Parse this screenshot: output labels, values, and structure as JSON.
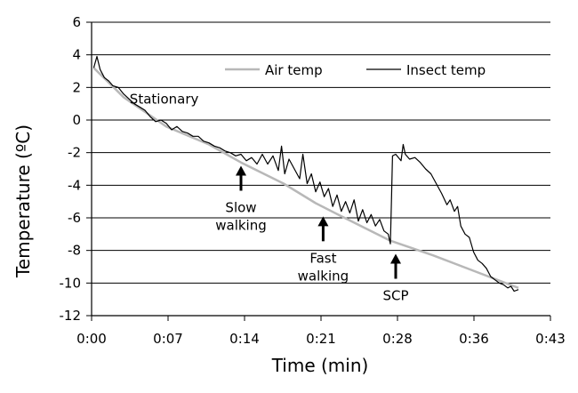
{
  "chart_data": {
    "type": "line",
    "xlabel": "Time (min)",
    "ylabel": "Temperature (ºC)",
    "xlim": [
      0,
      43
    ],
    "ylim": [
      -12,
      6
    ],
    "x_ticks": [
      "0:00",
      "0:07",
      "0:14",
      "0:21",
      "0:28",
      "0:36",
      "0:43"
    ],
    "y_ticks": [
      6,
      4,
      2,
      0,
      -2,
      -4,
      -6,
      -8,
      -10,
      -12
    ],
    "grid": "horizontal",
    "legend_position": "top-right",
    "colors": {
      "air": "#b8b8b8",
      "insect": "#000000",
      "grid": "#000000"
    },
    "series": [
      {
        "name": "Air temp",
        "x": [
          0.2,
          3,
          7,
          11,
          14,
          18,
          21,
          24,
          28,
          32,
          36,
          40
        ],
        "y": [
          3.2,
          1.4,
          -0.4,
          -1.5,
          -2.6,
          -3.9,
          -5.1,
          -6.1,
          -7.4,
          -8.3,
          -9.3,
          -10.3
        ]
      },
      {
        "name": "Insect temp",
        "x": [
          0.2,
          0.5,
          0.8,
          1.2,
          1.6,
          2.0,
          2.5,
          3.0,
          3.5,
          4.0,
          4.5,
          5.0,
          5.5,
          6.0,
          6.5,
          7.0,
          7.5,
          8.0,
          8.5,
          9.0,
          9.5,
          10.0,
          10.5,
          11.0,
          11.5,
          12.0,
          12.5,
          13.0,
          13.5,
          14.0,
          14.5,
          15.0,
          15.5,
          16.0,
          16.5,
          17.0,
          17.5,
          17.8,
          18.1,
          18.5,
          19.0,
          19.5,
          19.8,
          20.2,
          20.6,
          21.0,
          21.4,
          21.8,
          22.2,
          22.6,
          23.0,
          23.4,
          23.8,
          24.2,
          24.6,
          25.0,
          25.4,
          25.8,
          26.2,
          26.6,
          27.0,
          27.4,
          27.8,
          28.0,
          28.1,
          28.2,
          28.5,
          29.0,
          29.2,
          29.4,
          29.8,
          30.3,
          30.8,
          31.3,
          31.8,
          32.3,
          32.8,
          33.3,
          33.6,
          34.0,
          34.3,
          34.6,
          35.0,
          35.4,
          35.8,
          36.2,
          36.6,
          37.0,
          37.4,
          37.8,
          38.2,
          38.6,
          39.0,
          39.3,
          39.6,
          40.0
        ],
        "y": [
          3.2,
          3.9,
          3.1,
          2.6,
          2.4,
          2.1,
          2.0,
          1.6,
          1.3,
          1.0,
          0.8,
          0.6,
          0.2,
          -0.1,
          0.0,
          -0.2,
          -0.6,
          -0.4,
          -0.7,
          -0.8,
          -1.0,
          -1.0,
          -1.3,
          -1.4,
          -1.6,
          -1.7,
          -1.9,
          -2.0,
          -2.2,
          -2.1,
          -2.5,
          -2.3,
          -2.7,
          -2.1,
          -2.7,
          -2.2,
          -3.1,
          -1.6,
          -3.3,
          -2.4,
          -3.0,
          -3.6,
          -2.1,
          -3.9,
          -3.3,
          -4.4,
          -3.8,
          -4.7,
          -4.2,
          -5.3,
          -4.6,
          -5.6,
          -5.0,
          -5.7,
          -4.9,
          -6.2,
          -5.5,
          -6.3,
          -5.8,
          -6.5,
          -6.1,
          -6.8,
          -7.0,
          -7.6,
          -5.0,
          -2.2,
          -2.1,
          -2.5,
          -1.5,
          -2.1,
          -2.4,
          -2.3,
          -2.6,
          -3.0,
          -3.3,
          -3.9,
          -4.5,
          -5.2,
          -4.9,
          -5.6,
          -5.3,
          -6.5,
          -7.0,
          -7.2,
          -8.1,
          -8.6,
          -8.8,
          -9.1,
          -9.6,
          -9.8,
          -10.0,
          -10.1,
          -10.3,
          -10.2,
          -10.5,
          -10.4
        ]
      }
    ],
    "annotations": [
      {
        "lines": [
          "Stationary"
        ],
        "x": 6.8,
        "y": 1.0,
        "arrow": false
      },
      {
        "lines": [
          "Slow",
          "walking"
        ],
        "x": 14.0,
        "y": -2.7,
        "arrow": true
      },
      {
        "lines": [
          "Fast",
          "walking"
        ],
        "x": 21.7,
        "y": -5.8,
        "arrow": true
      },
      {
        "lines": [
          "SCP"
        ],
        "x": 28.5,
        "y": -8.1,
        "arrow": true
      }
    ]
  }
}
